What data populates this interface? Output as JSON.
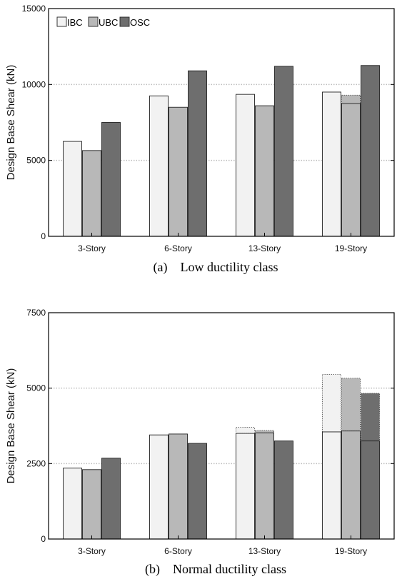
{
  "colors": {
    "IBC": "#f2f2f2",
    "UBC": "#b8b8b8",
    "OSC": "#6e6e6e",
    "grid": "#bdbdbd",
    "axis": "#000000"
  },
  "chart_data": [
    {
      "type": "bar",
      "caption": "(a)    Low ductility class",
      "ylabel": "Design Base Shear (kN)",
      "categories": [
        "3-Story",
        "6-Story",
        "13-Story",
        "19-Story"
      ],
      "ylim": [
        0,
        15000
      ],
      "yticks": [
        0,
        5000,
        10000,
        15000
      ],
      "ytick_labels": [
        "0",
        "5000",
        "10000",
        "15000"
      ],
      "grid": "horizontal dotted",
      "legend": {
        "placement": "top-left",
        "entries": [
          "IBC",
          "UBC",
          "OSC"
        ]
      },
      "series": [
        {
          "name": "IBC",
          "values": [
            6250,
            9250,
            9350,
            9500
          ],
          "upper": [
            null,
            null,
            null,
            null
          ]
        },
        {
          "name": "UBC",
          "values": [
            5650,
            8500,
            8600,
            8750
          ],
          "upper": [
            null,
            null,
            null,
            9300
          ]
        },
        {
          "name": "OSC",
          "values": [
            7500,
            10900,
            11200,
            11250
          ],
          "upper": [
            null,
            null,
            null,
            null
          ]
        }
      ]
    },
    {
      "type": "bar",
      "caption": "(b)    Normal ductility class",
      "ylabel": "Design Base Shear (kN)",
      "categories": [
        "3-Story",
        "6-Story",
        "13-Story",
        "19-Story"
      ],
      "ylim": [
        0,
        7500
      ],
      "yticks": [
        0,
        2500,
        5000,
        7500
      ],
      "ytick_labels": [
        "0",
        "2500",
        "5000",
        "7500"
      ],
      "grid": "horizontal dotted",
      "legend": null,
      "series": [
        {
          "name": "IBC",
          "values": [
            2350,
            3450,
            3500,
            3550
          ],
          "upper": [
            null,
            null,
            3700,
            5450
          ]
        },
        {
          "name": "UBC",
          "values": [
            2300,
            3480,
            3520,
            3580
          ],
          "upper": [
            null,
            null,
            3600,
            5330
          ]
        },
        {
          "name": "OSC",
          "values": [
            2680,
            3170,
            3250,
            3250
          ],
          "upper": [
            null,
            null,
            null,
            4830
          ]
        }
      ]
    }
  ]
}
